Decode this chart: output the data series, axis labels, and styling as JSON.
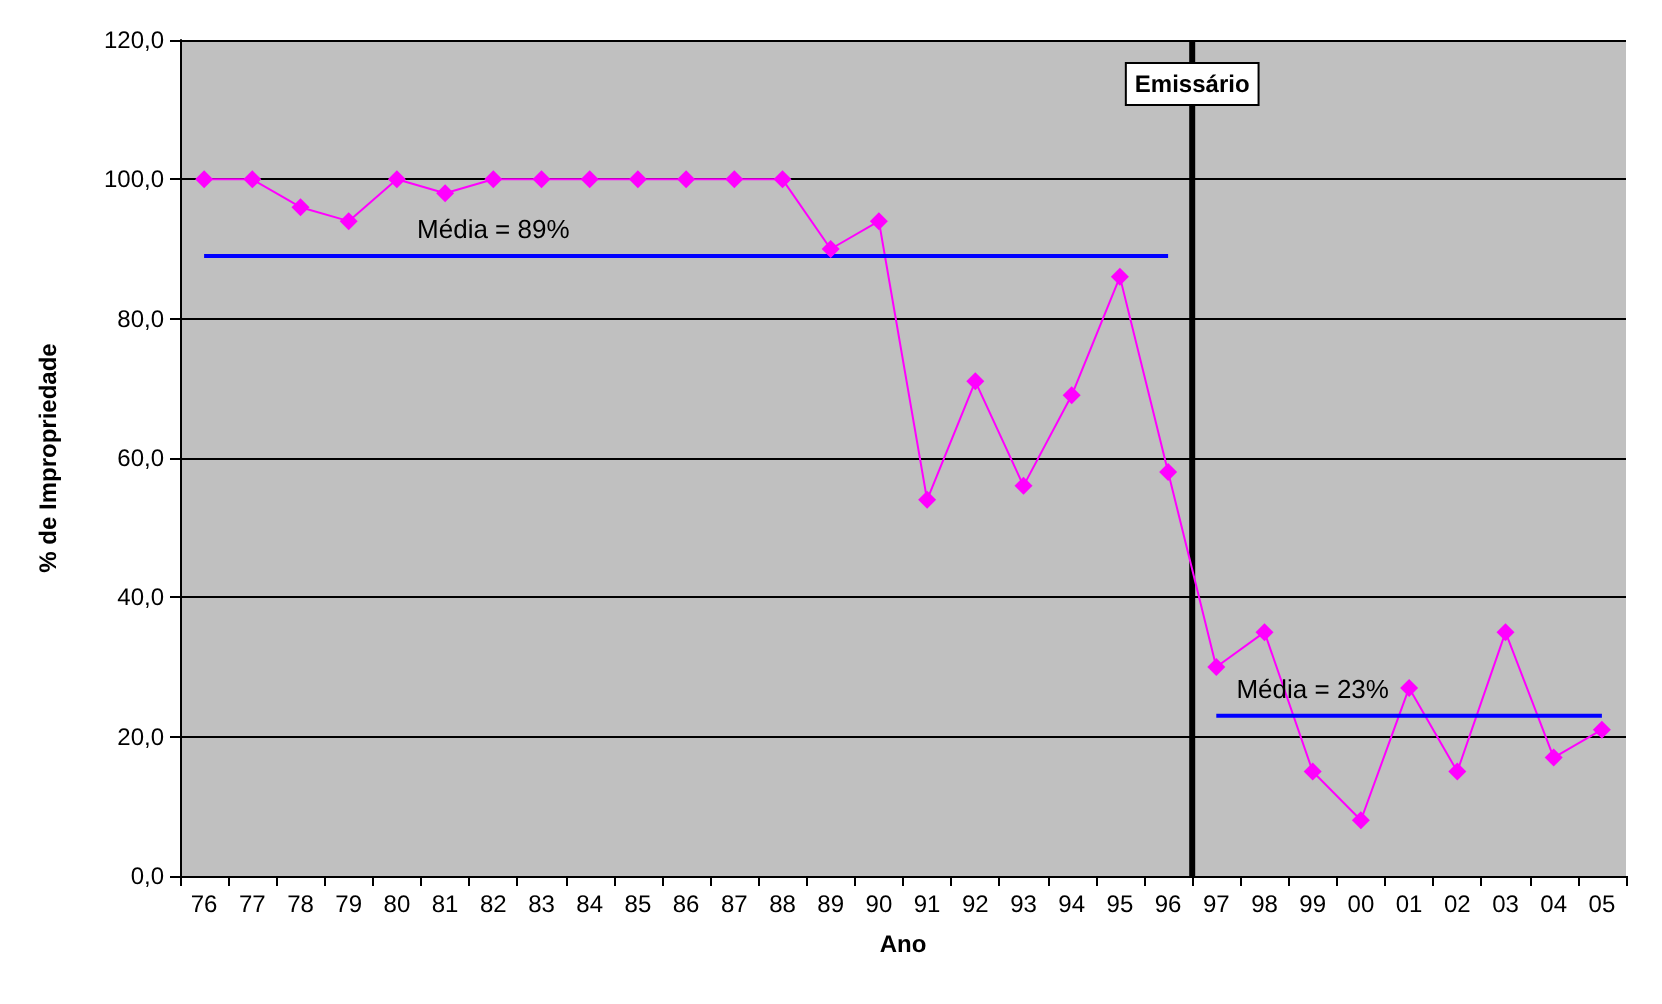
{
  "chart_data": {
    "type": "line",
    "xlabel": "Ano",
    "ylabel": "% de Impropriedade",
    "categories": [
      "76",
      "77",
      "78",
      "79",
      "80",
      "81",
      "82",
      "83",
      "84",
      "85",
      "86",
      "87",
      "88",
      "89",
      "90",
      "91",
      "92",
      "93",
      "94",
      "95",
      "96",
      "97",
      "98",
      "99",
      "00",
      "01",
      "02",
      "03",
      "04",
      "05"
    ],
    "series": [
      {
        "color": "#ff00ff",
        "marker": "diamond",
        "values": [
          100,
          100,
          96,
          94,
          100,
          98,
          100,
          100,
          100,
          100,
          100,
          100,
          100,
          90,
          94,
          54,
          71,
          56,
          69,
          86,
          58,
          30,
          35,
          15,
          8,
          27,
          15,
          35,
          17,
          21
        ]
      },
      {
        "type": "line",
        "color": "#0000ff",
        "marker": "none",
        "values": [
          89,
          89,
          89,
          89,
          89,
          89,
          89,
          89,
          89,
          89,
          89,
          89,
          89,
          89,
          89,
          89,
          89,
          89,
          89,
          89,
          89,
          null,
          null,
          null,
          null,
          null,
          null,
          null,
          null,
          null
        ]
      },
      {
        "type": "line",
        "color": "#0000ff",
        "marker": "none",
        "values": [
          null,
          null,
          null,
          null,
          null,
          null,
          null,
          null,
          null,
          null,
          null,
          null,
          null,
          null,
          null,
          null,
          null,
          null,
          null,
          null,
          null,
          23,
          23,
          23,
          23,
          23,
          23,
          23,
          23,
          23
        ]
      }
    ],
    "annotations": [
      {
        "text": "Média = 89%",
        "x": "82",
        "y": 89
      },
      {
        "text": "Média = 23%",
        "x": "99",
        "y": 23
      }
    ],
    "ref_lines": [
      {
        "axis": "x",
        "value": "97",
        "label": "Emissário",
        "color": "#000000"
      }
    ],
    "ylim": [
      0,
      120
    ],
    "yticks": [
      {
        "value": 0,
        "label": "0,0"
      },
      {
        "value": 20,
        "label": "20,0"
      },
      {
        "value": 40,
        "label": "40,0"
      },
      {
        "value": 60,
        "label": "60,0"
      },
      {
        "value": 80,
        "label": "80,0"
      },
      {
        "value": 100,
        "label": "100,0"
      },
      {
        "value": 120,
        "label": "120,0"
      }
    ],
    "grid": "y"
  }
}
